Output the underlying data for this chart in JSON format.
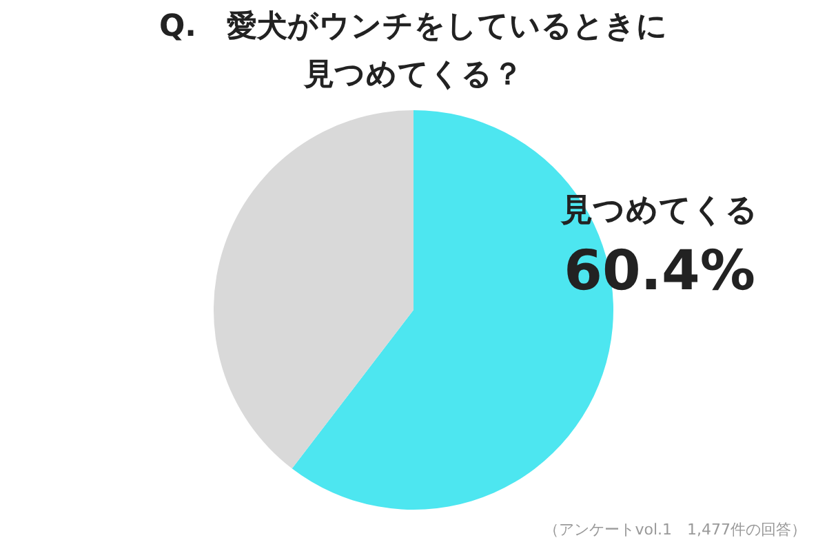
{
  "chart_data": {
    "type": "pie",
    "title": "Q.　愛犬がウンチをしているときに見つめてくる？",
    "categories": [
      "見つめてくる",
      null
    ],
    "values": [
      60.4,
      39.6
    ],
    "colors": [
      "#4de6f0",
      "#d9d9d9"
    ],
    "value_labels": [
      "60.4%",
      null
    ],
    "annotations": [
      "（アンケートvol.1　1,477件の回答）"
    ],
    "legend": false
  }
}
